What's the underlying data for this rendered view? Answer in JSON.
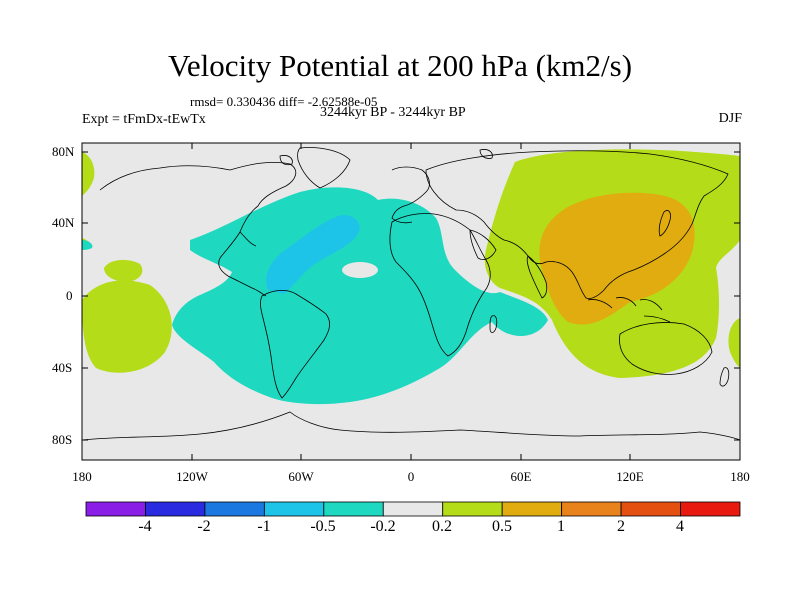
{
  "title": "Velocity Potential at 200 hPa (km2/s)",
  "stats_line": "rmsd= 0.330436 diff= -2.62588e-05",
  "experiment": "Expt = tFmDx-tEwTx",
  "period": "3244kyr BP - 3244kyr BP",
  "season": "DJF",
  "lat_labels": [
    "80N",
    "40N",
    "0",
    "40S",
    "80S"
  ],
  "lon_labels": [
    "180",
    "120W",
    "60W",
    "0",
    "60E",
    "120E",
    "180"
  ],
  "colorbar": {
    "labels": [
      "-4",
      "-2",
      "-1",
      "-0.5",
      "-0.2",
      "0.2",
      "0.5",
      "1",
      "2",
      "4"
    ],
    "colors": [
      "#8a1ee6",
      "#2a2ae0",
      "#1a78e0",
      "#1ec3e8",
      "#1ed8c0",
      "#e8e8e8",
      "#b4dc18",
      "#e0ac10",
      "#e8821a",
      "#e45010",
      "#e81a10"
    ]
  },
  "map_colors": {
    "background": "#e8e8e8",
    "weak_negative": "#1ed8c0",
    "moderate_negative": "#1ec3e8",
    "weak_positive": "#b4dc18",
    "moderate_positive": "#e0ac10",
    "coastline": "#000000"
  }
}
